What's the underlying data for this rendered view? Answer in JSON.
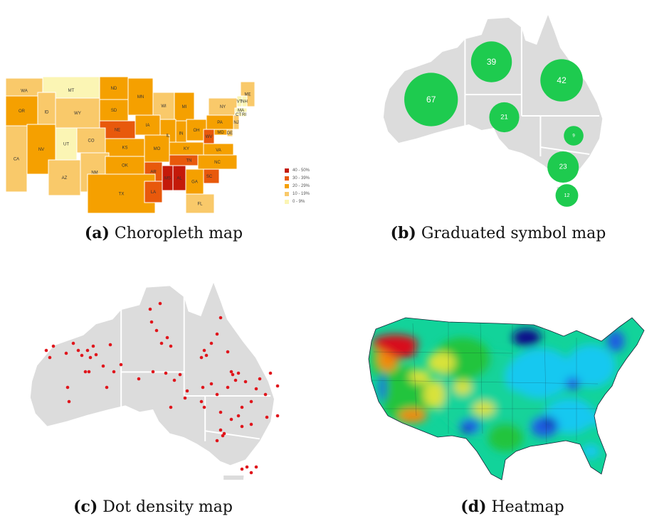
{
  "panels": {
    "a": {
      "letter": "(a)",
      "title": "Choropleth map",
      "legend": [
        {
          "label": "40 - 50%",
          "color": "#c41a0a"
        },
        {
          "label": "30 - 39%",
          "color": "#e8590c"
        },
        {
          "label": "20 - 29%",
          "color": "#f5a000"
        },
        {
          "label": "10 - 19%",
          "color": "#f9c96a"
        },
        {
          "label": "0 - 9%",
          "color": "#fbf5b4"
        }
      ],
      "states": [
        {
          "abbr": "WA",
          "level": 3
        },
        {
          "abbr": "MT",
          "level": 4
        },
        {
          "abbr": "ND",
          "level": 2
        },
        {
          "abbr": "MN",
          "level": 2
        },
        {
          "abbr": "ME",
          "level": 3
        },
        {
          "abbr": "OR",
          "level": 2
        },
        {
          "abbr": "ID",
          "level": 3
        },
        {
          "abbr": "SD",
          "level": 2
        },
        {
          "abbr": "WI",
          "level": 3
        },
        {
          "abbr": "MI",
          "level": 2
        },
        {
          "abbr": "NY",
          "level": 3
        },
        {
          "abbr": "VT",
          "level": 4
        },
        {
          "abbr": "NH",
          "level": 4
        },
        {
          "abbr": "MA",
          "level": 4
        },
        {
          "abbr": "CT",
          "level": 4
        },
        {
          "abbr": "RI",
          "level": 4
        },
        {
          "abbr": "WY",
          "level": 3
        },
        {
          "abbr": "NE",
          "level": 1
        },
        {
          "abbr": "IA",
          "level": 2
        },
        {
          "abbr": "IL",
          "level": 2
        },
        {
          "abbr": "IN",
          "level": 2
        },
        {
          "abbr": "OH",
          "level": 2
        },
        {
          "abbr": "PA",
          "level": 2
        },
        {
          "abbr": "NJ",
          "level": 3
        },
        {
          "abbr": "NV",
          "level": 2
        },
        {
          "abbr": "UT",
          "level": 4
        },
        {
          "abbr": "CO",
          "level": 3
        },
        {
          "abbr": "KS",
          "level": 2
        },
        {
          "abbr": "MO",
          "level": 2
        },
        {
          "abbr": "KY",
          "level": 2
        },
        {
          "abbr": "WV",
          "level": 1
        },
        {
          "abbr": "MD",
          "level": 2
        },
        {
          "abbr": "DE",
          "level": 3
        },
        {
          "abbr": "VA",
          "level": 2
        },
        {
          "abbr": "CA",
          "level": 3
        },
        {
          "abbr": "AZ",
          "level": 3
        },
        {
          "abbr": "NM",
          "level": 3
        },
        {
          "abbr": "OK",
          "level": 2
        },
        {
          "abbr": "AR",
          "level": 1
        },
        {
          "abbr": "TN",
          "level": 1
        },
        {
          "abbr": "NC",
          "level": 2
        },
        {
          "abbr": "SC",
          "level": 1
        },
        {
          "abbr": "TX",
          "level": 2
        },
        {
          "abbr": "LA",
          "level": 1
        },
        {
          "abbr": "MS",
          "level": 0
        },
        {
          "abbr": "AL",
          "level": 0
        },
        {
          "abbr": "GA",
          "level": 2
        },
        {
          "abbr": "FL",
          "level": 3
        }
      ]
    },
    "b": {
      "letter": "(b)",
      "title": "Graduated symbol map",
      "symbol_color": "#1ecb4f",
      "land_color": "#dcdcdc",
      "values": [
        {
          "region": "WA",
          "value": "67"
        },
        {
          "region": "NT",
          "value": "39"
        },
        {
          "region": "QLD",
          "value": "42"
        },
        {
          "region": "SA",
          "value": "21"
        },
        {
          "region": "NSW",
          "value": "9"
        },
        {
          "region": "VIC",
          "value": "23"
        },
        {
          "region": "TAS",
          "value": "12"
        }
      ]
    },
    "c": {
      "letter": "(c)",
      "title": "Dot density map",
      "dot_color": "#e0161c",
      "land_color": "#dcdcdc"
    },
    "d": {
      "letter": "(d)",
      "title": "Heatmap",
      "colors": [
        "#0c0c8a",
        "#1f5fe0",
        "#19c8f0",
        "#12d39a",
        "#22c43c",
        "#d8e23a",
        "#f08a10",
        "#d8101a"
      ]
    }
  }
}
